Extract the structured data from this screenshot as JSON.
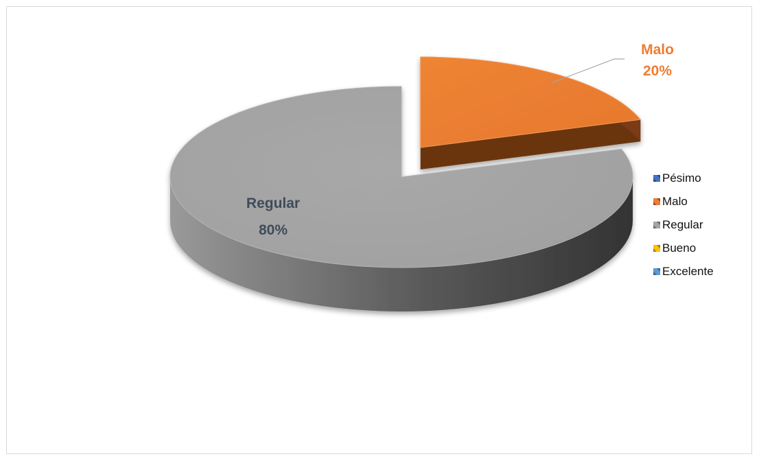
{
  "chart_data": {
    "type": "pie",
    "title": "",
    "categories": [
      "Pésimo",
      "Malo",
      "Regular",
      "Bueno",
      "Excelente"
    ],
    "values": [
      0,
      20,
      80,
      0,
      0
    ],
    "colors": [
      "#4472c4",
      "#ed7d31",
      "#a5a5a5",
      "#ffc000",
      "#5b9bd5"
    ],
    "data_labels": [
      {
        "category": "Malo",
        "text_name": "Malo",
        "text_value": "20%",
        "color": "#ed7d31"
      },
      {
        "category": "Regular",
        "text_name": "Regular",
        "text_value": "80%",
        "color": "#404b5a"
      }
    ],
    "legend": {
      "position": "right",
      "entries": [
        "Pésimo",
        "Malo",
        "Regular",
        "Bueno",
        "Excelente"
      ]
    },
    "style": "3d-exploded"
  }
}
